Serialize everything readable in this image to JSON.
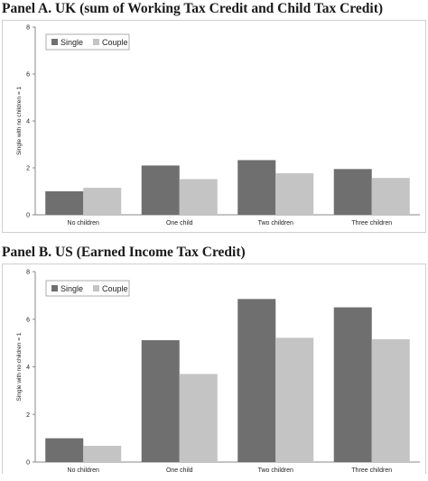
{
  "colors": {
    "single": "#6f6f6f",
    "couple": "#c4c4c4"
  },
  "chart_data": [
    {
      "type": "bar",
      "title": "Panel A. UK (sum of Working Tax Credit and Child Tax Credit)",
      "categories": [
        "No children",
        "One child",
        "Two children",
        "Three children"
      ],
      "series": [
        {
          "name": "Single",
          "values": [
            1.0,
            2.1,
            2.33,
            1.95
          ]
        },
        {
          "name": "Couple",
          "values": [
            1.15,
            1.52,
            1.77,
            1.57
          ]
        }
      ],
      "ylabel": "Single with no children = 1",
      "xlabel": "",
      "ylim": [
        0,
        8
      ],
      "yticks": [
        0,
        2,
        4,
        6,
        8
      ],
      "legend": "top-left",
      "grid": false
    },
    {
      "type": "bar",
      "title": "Panel B. US (Earned Income Tax Credit)",
      "categories": [
        "No children",
        "One child",
        "Two children",
        "Three children"
      ],
      "series": [
        {
          "name": "Single",
          "values": [
            1.0,
            5.12,
            6.85,
            6.5
          ]
        },
        {
          "name": "Couple",
          "values": [
            0.68,
            3.7,
            5.22,
            5.16
          ]
        }
      ],
      "ylabel": "Single with no children = 1",
      "xlabel": "",
      "ylim": [
        0,
        8
      ],
      "yticks": [
        0,
        2,
        4,
        6,
        8
      ],
      "legend": "top-left",
      "grid": false
    }
  ]
}
